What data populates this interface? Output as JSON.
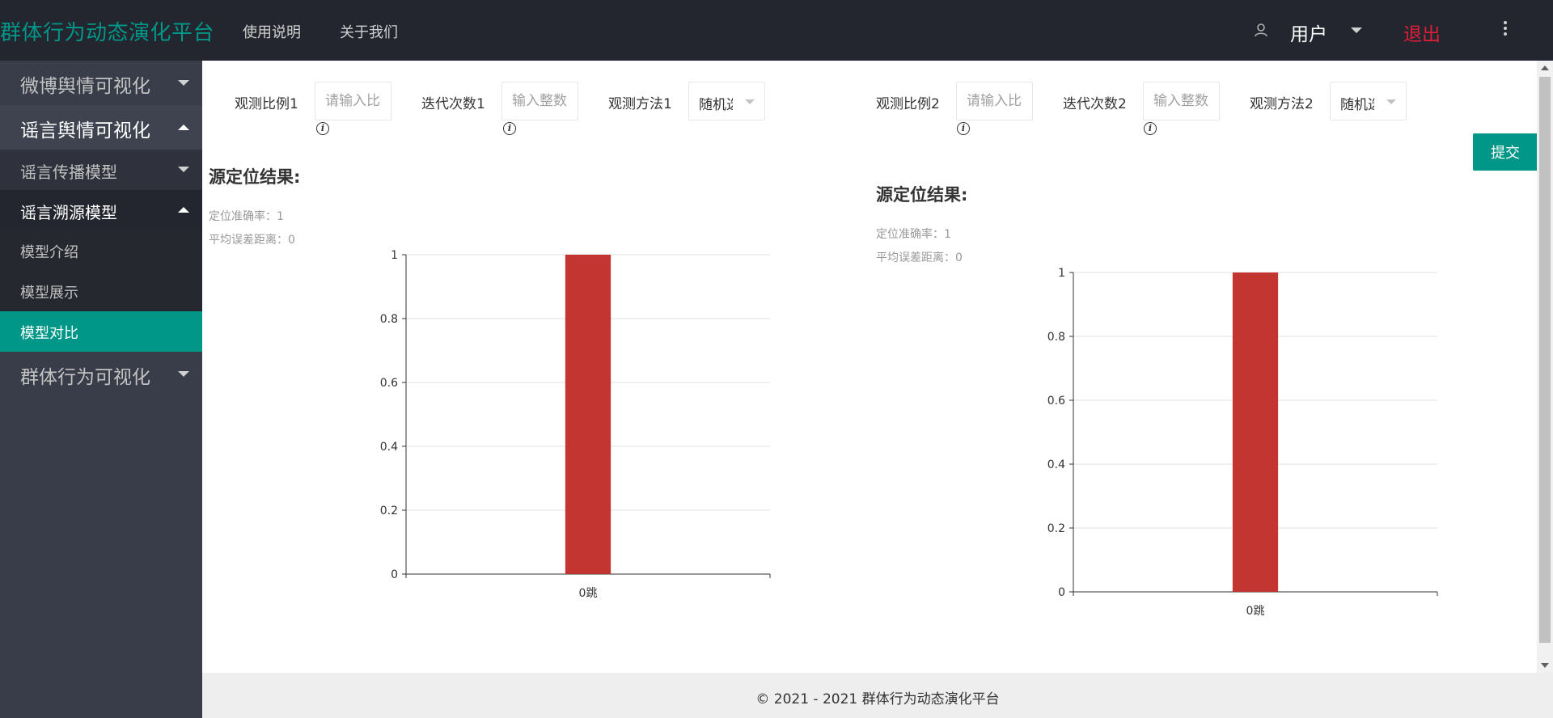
{
  "app": {
    "brand": "群体行为动态演化平台",
    "nav": [
      "使用说明",
      "关于我们"
    ],
    "user_label": "用户",
    "logout_label": "退出",
    "brand_color": "#009688",
    "logout_color": "#e01e36"
  },
  "sidebar": {
    "items": [
      {
        "label": "微博舆情可视化",
        "level": 1,
        "state": "collapsed"
      },
      {
        "label": "谣言舆情可视化",
        "level": 1,
        "state": "expanded"
      },
      {
        "label": "谣言传播模型",
        "level": 2,
        "state": "collapsed"
      },
      {
        "label": "谣言溯源模型",
        "level": 2,
        "state": "expanded"
      },
      {
        "label": "模型介绍",
        "level": 3
      },
      {
        "label": "模型展示",
        "level": 3
      },
      {
        "label": "模型对比",
        "level": 3,
        "state": "active"
      },
      {
        "label": "群体行为可视化",
        "level": 1,
        "state": "collapsed"
      }
    ]
  },
  "form": {
    "left": {
      "ratio_label": "观测比例1",
      "ratio_placeholder": "请输入比例",
      "iter_label": "迭代次数1",
      "iter_placeholder": "输入整数",
      "method_label": "观测方法1",
      "method_value": "随机选择"
    },
    "right": {
      "ratio_label": "观测比例2",
      "ratio_placeholder": "请输入比例",
      "iter_label": "迭代次数2",
      "iter_placeholder": "输入整数",
      "method_label": "观测方法2",
      "method_value": "随机选择"
    },
    "submit_label": "提交"
  },
  "results": {
    "left": {
      "title": "源定位结果:",
      "accuracy": "定位准确率：1",
      "avg_error": "平均误差距离：0"
    },
    "right": {
      "title": "源定位结果:",
      "accuracy": "定位准确率：1",
      "avg_error": "平均误差距离：0"
    }
  },
  "chart_data": [
    {
      "type": "bar",
      "categories": [
        "0跳"
      ],
      "values": [
        1
      ],
      "ylim": [
        0,
        1
      ],
      "yticks": [
        "0",
        "0.2",
        "0.4",
        "0.6",
        "0.8",
        "1"
      ],
      "grid": true,
      "bar_color": "#c23531"
    },
    {
      "type": "bar",
      "categories": [
        "0跳"
      ],
      "values": [
        1
      ],
      "ylim": [
        0,
        1
      ],
      "yticks": [
        "0",
        "0.2",
        "0.4",
        "0.6",
        "0.8",
        "1"
      ],
      "grid": true,
      "bar_color": "#c23531"
    }
  ],
  "footer": {
    "text": "© 2021 - 2021 群体行为动态演化平台"
  }
}
